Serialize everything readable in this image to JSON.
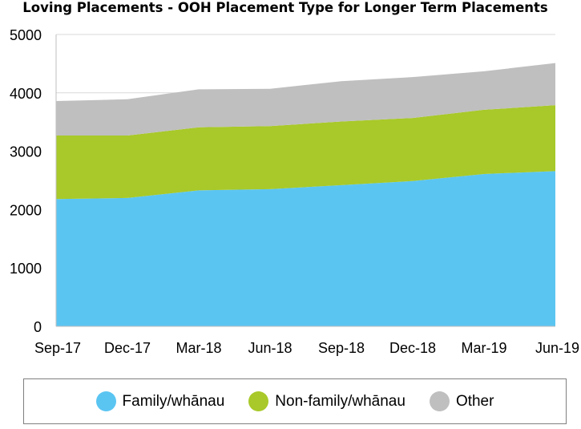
{
  "chart_data": {
    "type": "area",
    "stacked": true,
    "title": "Loving Placements - OOH Placement Type for Longer Term Placements",
    "categories": [
      "Sep-17",
      "Dec-17",
      "Mar-18",
      "Jun-18",
      "Sep-18",
      "Dec-18",
      "Mar-19",
      "Jun-19"
    ],
    "series": [
      {
        "name": "Family/whānau",
        "color": "#5bc5f2",
        "values": [
          2180,
          2200,
          2330,
          2350,
          2420,
          2490,
          2610,
          2660
        ]
      },
      {
        "name": "Non-family/whānau",
        "color": "#a8c929",
        "values": [
          1090,
          1070,
          1080,
          1080,
          1090,
          1080,
          1100,
          1130
        ]
      },
      {
        "name": "Other",
        "color": "#bfbfbf",
        "values": [
          590,
          620,
          650,
          640,
          690,
          700,
          660,
          720
        ]
      }
    ],
    "ylim": [
      0,
      5000
    ],
    "yticks": [
      0,
      1000,
      2000,
      3000,
      4000,
      5000
    ],
    "grid": true,
    "legend_position": "bottom"
  }
}
